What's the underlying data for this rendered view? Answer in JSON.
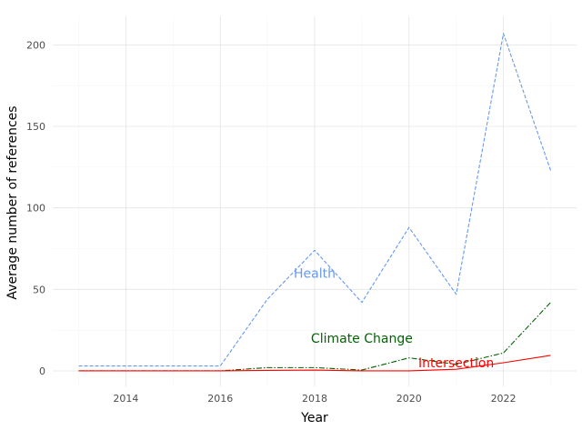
{
  "chart_data": {
    "type": "line",
    "title": "",
    "xlabel": "Year",
    "ylabel": "Average number of references",
    "xlim": [
      2012.45,
      2023.55
    ],
    "ylim": [
      -9.5,
      217.5
    ],
    "x_ticks": [
      2014,
      2016,
      2018,
      2020,
      2022
    ],
    "y_ticks": [
      0,
      50,
      100,
      150,
      200
    ],
    "grid": true,
    "legend": "none (direct labels)",
    "x": [
      2013,
      2014,
      2015,
      2016,
      2017,
      2018,
      2019,
      2020,
      2021,
      2022,
      2023
    ],
    "series": [
      {
        "name": "Health",
        "color": "#6699ee",
        "line_style": "dashed",
        "values": [
          3,
          3,
          3,
          3,
          44,
          74,
          42,
          88,
          47,
          207,
          123
        ]
      },
      {
        "name": "Climate Change",
        "color": "#006400",
        "line_style": "dashdot",
        "values": [
          0,
          0,
          0,
          0,
          2,
          2,
          0.5,
          8,
          4,
          11,
          42
        ]
      },
      {
        "name": "Intersection",
        "color": "#ff0000",
        "line_style": "solid",
        "values": [
          0,
          0,
          0,
          0,
          0.3,
          0.5,
          0,
          0,
          1,
          5,
          9.5
        ]
      }
    ],
    "annotations": [
      {
        "text": "Health",
        "x": 2018,
        "y": 60,
        "color": "#6699ee"
      },
      {
        "text": "Climate Change",
        "x": 2019,
        "y": 20,
        "color": "#006400"
      },
      {
        "text": "Intersection",
        "x": 2021,
        "y": 5,
        "color": "#ff0000"
      }
    ]
  }
}
